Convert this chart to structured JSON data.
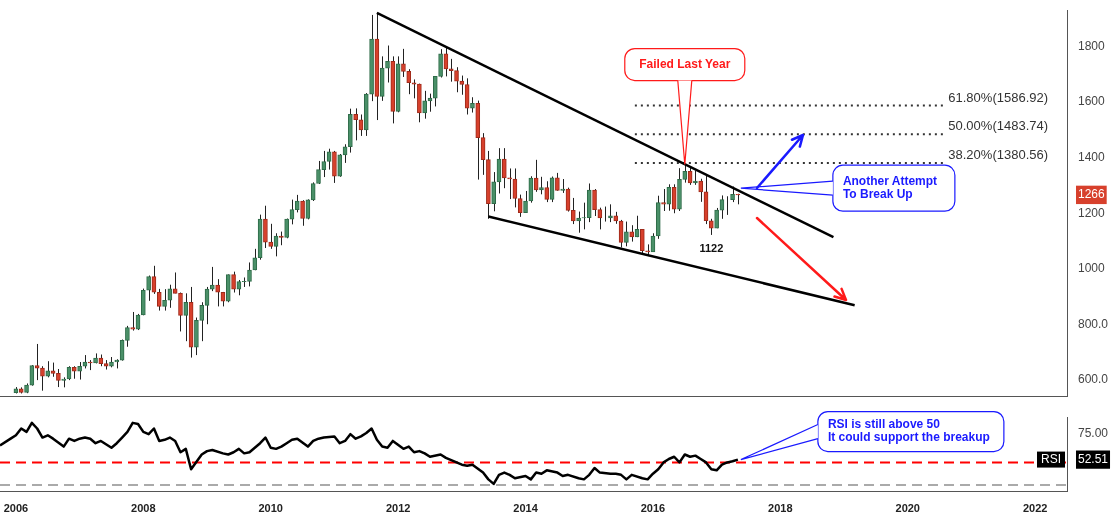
{
  "chart_data": [
    {
      "type": "candlestick",
      "x": [
        "2006-01",
        "2006-02",
        "2006-03",
        "2006-04",
        "2006-05",
        "2006-06",
        "2006-07",
        "2006-08",
        "2006-09",
        "2006-10",
        "2006-11",
        "2006-12",
        "2007-01",
        "2007-02",
        "2007-03",
        "2007-04",
        "2007-05",
        "2007-06",
        "2007-07",
        "2007-08",
        "2007-09",
        "2007-10",
        "2007-11",
        "2007-12",
        "2008-01",
        "2008-02",
        "2008-03",
        "2008-04",
        "2008-05",
        "2008-06",
        "2008-07",
        "2008-08",
        "2008-09",
        "2008-10",
        "2008-11",
        "2008-12",
        "2009-01",
        "2009-02",
        "2009-03",
        "2009-04",
        "2009-05",
        "2009-06",
        "2009-07",
        "2009-08",
        "2009-09",
        "2009-10",
        "2009-11",
        "2009-12",
        "2010-01",
        "2010-02",
        "2010-03",
        "2010-04",
        "2010-05",
        "2010-06",
        "2010-07",
        "2010-08",
        "2010-09",
        "2010-10",
        "2010-11",
        "2010-12",
        "2011-01",
        "2011-02",
        "2011-03",
        "2011-04",
        "2011-05",
        "2011-06",
        "2011-07",
        "2011-08",
        "2011-09",
        "2011-10",
        "2011-11",
        "2011-12",
        "2012-01",
        "2012-02",
        "2012-03",
        "2012-04",
        "2012-05",
        "2012-06",
        "2012-07",
        "2012-08",
        "2012-09",
        "2012-10",
        "2012-11",
        "2012-12",
        "2013-01",
        "2013-02",
        "2013-03",
        "2013-04",
        "2013-05",
        "2013-06",
        "2013-07",
        "2013-08",
        "2013-09",
        "2013-10",
        "2013-11",
        "2013-12",
        "2014-01",
        "2014-02",
        "2014-03",
        "2014-04",
        "2014-05",
        "2014-06",
        "2014-07",
        "2014-08",
        "2014-09",
        "2014-10",
        "2014-11",
        "2014-12",
        "2015-01",
        "2015-02",
        "2015-03",
        "2015-04",
        "2015-05",
        "2015-06",
        "2015-07",
        "2015-08",
        "2015-09",
        "2015-10",
        "2015-11",
        "2015-12",
        "2016-01",
        "2016-02",
        "2016-03",
        "2016-04",
        "2016-05",
        "2016-06",
        "2016-07",
        "2016-08",
        "2016-09",
        "2016-10",
        "2016-11",
        "2016-12",
        "2017-01",
        "2017-02",
        "2017-03",
        "2017-04",
        "2017-05"
      ],
      "ohlc": [
        [
          555,
          575,
          552,
          569
        ],
        [
          569,
          574,
          552,
          556
        ],
        [
          556,
          588,
          553,
          582
        ],
        [
          582,
          654,
          580,
          652
        ],
        [
          652,
          730,
          600,
          643
        ],
        [
          643,
          650,
          562,
          614
        ],
        [
          614,
          668,
          610,
          633
        ],
        [
          633,
          663,
          612,
          624
        ],
        [
          624,
          640,
          575,
          599
        ],
        [
          599,
          610,
          574,
          604
        ],
        [
          604,
          650,
          600,
          646
        ],
        [
          646,
          650,
          605,
          632
        ],
        [
          632,
          665,
          602,
          650
        ],
        [
          650,
          690,
          642,
          665
        ],
        [
          665,
          672,
          636,
          662
        ],
        [
          662,
          696,
          660,
          679
        ],
        [
          679,
          692,
          650,
          659
        ],
        [
          659,
          672,
          638,
          650
        ],
        [
          650,
          683,
          646,
          665
        ],
        [
          665,
          675,
          642,
          672
        ],
        [
          672,
          746,
          670,
          743
        ],
        [
          743,
          795,
          720,
          789
        ],
        [
          789,
          845,
          778,
          783
        ],
        [
          783,
          838,
          780,
          834
        ],
        [
          834,
          929,
          833,
          923
        ],
        [
          923,
          976,
          885,
          972
        ],
        [
          972,
          1011,
          910,
          916
        ],
        [
          916,
          928,
          850,
          865
        ],
        [
          865,
          927,
          850,
          887
        ],
        [
          887,
          943,
          860,
          928
        ],
        [
          928,
          987,
          912,
          912
        ],
        [
          912,
          915,
          775,
          833
        ],
        [
          833,
          912,
          740,
          880
        ],
        [
          880,
          935,
          681,
          718
        ],
        [
          718,
          825,
          690,
          815
        ],
        [
          815,
          880,
          740,
          869
        ],
        [
          869,
          935,
          801,
          927
        ],
        [
          927,
          1007,
          920,
          942
        ],
        [
          942,
          963,
          865,
          916
        ],
        [
          916,
          917,
          865,
          884
        ],
        [
          884,
          980,
          880,
          979
        ],
        [
          979,
          990,
          915,
          927
        ],
        [
          927,
          960,
          905,
          954
        ],
        [
          954,
          969,
          935,
          955
        ],
        [
          955,
          1023,
          937,
          996
        ],
        [
          996,
          1072,
          995,
          1040
        ],
        [
          1040,
          1195,
          1033,
          1179
        ],
        [
          1179,
          1227,
          1075,
          1096
        ],
        [
          1096,
          1162,
          1072,
          1081
        ],
        [
          1081,
          1128,
          1045,
          1118
        ],
        [
          1118,
          1134,
          1085,
          1113
        ],
        [
          1113,
          1181,
          1110,
          1179
        ],
        [
          1179,
          1249,
          1160,
          1213
        ],
        [
          1213,
          1266,
          1203,
          1244
        ],
        [
          1244,
          1247,
          1155,
          1181
        ],
        [
          1181,
          1250,
          1178,
          1248
        ],
        [
          1248,
          1311,
          1244,
          1307
        ],
        [
          1307,
          1388,
          1305,
          1357
        ],
        [
          1357,
          1424,
          1330,
          1386
        ],
        [
          1386,
          1432,
          1357,
          1421
        ],
        [
          1421,
          1424,
          1309,
          1333
        ],
        [
          1333,
          1413,
          1331,
          1410
        ],
        [
          1410,
          1448,
          1381,
          1439
        ],
        [
          1439,
          1576,
          1418,
          1556
        ],
        [
          1556,
          1577,
          1462,
          1536
        ],
        [
          1536,
          1555,
          1478,
          1500
        ],
        [
          1500,
          1632,
          1478,
          1628
        ],
        [
          1628,
          1913,
          1603,
          1826
        ],
        [
          1826,
          1920,
          1535,
          1620
        ],
        [
          1620,
          1764,
          1604,
          1722
        ],
        [
          1722,
          1803,
          1670,
          1746
        ],
        [
          1746,
          1764,
          1523,
          1566
        ],
        [
          1566,
          1764,
          1563,
          1737
        ],
        [
          1737,
          1791,
          1690,
          1710
        ],
        [
          1710,
          1718,
          1628,
          1669
        ],
        [
          1669,
          1681,
          1613,
          1664
        ],
        [
          1664,
          1666,
          1527,
          1561
        ],
        [
          1561,
          1640,
          1540,
          1604
        ],
        [
          1604,
          1630,
          1565,
          1614
        ],
        [
          1614,
          1693,
          1584,
          1692
        ],
        [
          1692,
          1790,
          1688,
          1773
        ],
        [
          1773,
          1796,
          1692,
          1719
        ],
        [
          1719,
          1755,
          1673,
          1713
        ],
        [
          1713,
          1725,
          1635,
          1675
        ],
        [
          1675,
          1695,
          1626,
          1663
        ],
        [
          1663,
          1685,
          1555,
          1578
        ],
        [
          1578,
          1617,
          1562,
          1595
        ],
        [
          1595,
          1605,
          1321,
          1472
        ],
        [
          1472,
          1488,
          1338,
          1393
        ],
        [
          1393,
          1424,
          1180,
          1234
        ],
        [
          1234,
          1348,
          1207,
          1313
        ],
        [
          1313,
          1434,
          1271,
          1395
        ],
        [
          1395,
          1434,
          1290,
          1327
        ],
        [
          1327,
          1361,
          1251,
          1323
        ],
        [
          1323,
          1361,
          1221,
          1253
        ],
        [
          1253,
          1267,
          1187,
          1202
        ],
        [
          1202,
          1280,
          1202,
          1244
        ],
        [
          1244,
          1333,
          1238,
          1326
        ],
        [
          1326,
          1392,
          1277,
          1284
        ],
        [
          1284,
          1331,
          1268,
          1292
        ],
        [
          1292,
          1315,
          1240,
          1250
        ],
        [
          1250,
          1332,
          1240,
          1327
        ],
        [
          1327,
          1345,
          1281,
          1282
        ],
        [
          1282,
          1323,
          1273,
          1287
        ],
        [
          1287,
          1292,
          1206,
          1210
        ],
        [
          1210,
          1255,
          1161,
          1172
        ],
        [
          1172,
          1206,
          1130,
          1183
        ],
        [
          1183,
          1238,
          1142,
          1184
        ],
        [
          1184,
          1307,
          1168,
          1283
        ],
        [
          1283,
          1287,
          1190,
          1213
        ],
        [
          1213,
          1220,
          1142,
          1183
        ],
        [
          1183,
          1224,
          1170,
          1183
        ],
        [
          1183,
          1232,
          1168,
          1191
        ],
        [
          1191,
          1205,
          1162,
          1172
        ],
        [
          1172,
          1176,
          1077,
          1095
        ],
        [
          1095,
          1170,
          1081,
          1133
        ],
        [
          1133,
          1157,
          1098,
          1115
        ],
        [
          1115,
          1191,
          1114,
          1142
        ],
        [
          1142,
          1142,
          1053,
          1065
        ],
        [
          1065,
          1088,
          1046,
          1061
        ],
        [
          1061,
          1128,
          1061,
          1118
        ],
        [
          1118,
          1263,
          1108,
          1238
        ],
        [
          1238,
          1287,
          1208,
          1233
        ],
        [
          1233,
          1304,
          1209,
          1293
        ],
        [
          1293,
          1304,
          1200,
          1215
        ],
        [
          1215,
          1362,
          1208,
          1322
        ],
        [
          1322,
          1375,
          1310,
          1351
        ],
        [
          1351,
          1367,
          1302,
          1309
        ],
        [
          1309,
          1353,
          1302,
          1316
        ],
        [
          1316,
          1324,
          1241,
          1277
        ],
        [
          1277,
          1338,
          1161,
          1173
        ],
        [
          1173,
          1180,
          1122,
          1146
        ],
        [
          1146,
          1219,
          1146,
          1211
        ],
        [
          1211,
          1264,
          1180,
          1249
        ],
        [
          1249,
          1261,
          1194,
          1249
        ],
        [
          1249,
          1296,
          1240,
          1268
        ],
        [
          1268,
          1270,
          1232,
          1266
        ]
      ],
      "series": [
        {
          "type": "line",
          "color": "#000000",
          "x": [
            "2011-09",
            "2018-11"
          ],
          "values": [
            1920,
            1114
          ]
        },
        {
          "type": "line",
          "color": "#000000",
          "x": [
            "2013-06",
            "2019-03"
          ],
          "values": [
            1188,
            869
          ]
        }
      ],
      "xlim": [
        "2005-10",
        "2022-07"
      ],
      "ylim": [
        540,
        1930
      ],
      "yticks": [
        {
          "value": 600,
          "label": "600.0"
        },
        {
          "value": 800,
          "label": "800.0"
        },
        1000,
        1200,
        {
          "value": 1266,
          "label": "1266"
        },
        1400,
        1600,
        1800
      ],
      "tick_labels": "y",
      "grid": false,
      "legend": false,
      "marker": "none",
      "ref_lines": [
        {
          "axis": "y",
          "value": 1380.56,
          "label": "38.20%(1380.56)",
          "color": "#333333",
          "line_style": "dotted"
        },
        {
          "axis": "y",
          "value": 1483.74,
          "label": "50.00%(1483.74)",
          "color": "#333333",
          "line_style": "dotted"
        },
        {
          "axis": "y",
          "value": 1586.92,
          "label": "61.80%(1586.92)",
          "color": "#333333",
          "line_style": "dotted"
        }
      ],
      "annotations": [
        {
          "text": "Failed Last Year",
          "x": "2016-07",
          "y": 1375
        },
        {
          "text": "Another Attempt\nTo Break Up",
          "x": "2017-05",
          "y": 1290
        },
        {
          "text": "1122",
          "x": "2016-12",
          "y": 1122
        }
      ]
    },
    {
      "type": "line",
      "series": [
        {
          "color": "#000000",
          "x": [
            "2005-10",
            "2005-12",
            "2006-01",
            "2006-02",
            "2006-03",
            "2006-04",
            "2006-05",
            "2006-06",
            "2006-07",
            "2006-08",
            "2006-10",
            "2006-11",
            "2006-12",
            "2007-01",
            "2007-02",
            "2007-03",
            "2007-04",
            "2007-05",
            "2007-07",
            "2007-08",
            "2007-09",
            "2007-10",
            "2007-11",
            "2007-12",
            "2008-01",
            "2008-02",
            "2008-03",
            "2008-04",
            "2008-05",
            "2008-06",
            "2008-07",
            "2008-08",
            "2008-09",
            "2008-10",
            "2008-12",
            "2009-01",
            "2009-02",
            "2009-04",
            "2009-05",
            "2009-06",
            "2009-07",
            "2009-08",
            "2009-09",
            "2009-10",
            "2009-11",
            "2009-12",
            "2010-01",
            "2010-02",
            "2010-03",
            "2010-04",
            "2010-05",
            "2010-06",
            "2010-08",
            "2010-09",
            "2010-10",
            "2010-11",
            "2011-01",
            "2011-02",
            "2011-03",
            "2011-04",
            "2011-05",
            "2011-06",
            "2011-07",
            "2011-08",
            "2011-09",
            "2011-10",
            "2011-11",
            "2011-12",
            "2012-02",
            "2012-03",
            "2012-04",
            "2012-05",
            "2012-06",
            "2012-07",
            "2012-09",
            "2012-10",
            "2012-11",
            "2013-01",
            "2013-02",
            "2013-03",
            "2013-05",
            "2013-06",
            "2013-07",
            "2013-08",
            "2013-09",
            "2013-10",
            "2013-11",
            "2014-01",
            "2014-02",
            "2014-03",
            "2014-04",
            "2014-05",
            "2014-07",
            "2014-08",
            "2014-09",
            "2014-11",
            "2014-12",
            "2015-01",
            "2015-02",
            "2015-03",
            "2015-05",
            "2015-06",
            "2015-07",
            "2015-08",
            "2015-09",
            "2015-11",
            "2015-12",
            "2016-01",
            "2016-02",
            "2016-03",
            "2016-04",
            "2016-05",
            "2016-06",
            "2016-07",
            "2016-08",
            "2016-09",
            "2016-10",
            "2016-11",
            "2016-12",
            "2017-01",
            "2017-02",
            "2017-03",
            "2017-04",
            "2017-05"
          ],
          "values": [
            65,
            71,
            74,
            80,
            77,
            85,
            80,
            72,
            74,
            71,
            64,
            71,
            69,
            71,
            72,
            71,
            67,
            69,
            63,
            67,
            72,
            77,
            85,
            84,
            77,
            75,
            80,
            69,
            70,
            72,
            69,
            59,
            62,
            44,
            57,
            60,
            61,
            58,
            57,
            59,
            62,
            58,
            59,
            63,
            67,
            72,
            63,
            62,
            64,
            67,
            70,
            71,
            64,
            69,
            71,
            72,
            73,
            67,
            69,
            75,
            71,
            73,
            76,
            80,
            70,
            64,
            63,
            69,
            62,
            64,
            59,
            60,
            58,
            55,
            57,
            54,
            52,
            48,
            47,
            48,
            41,
            35,
            31,
            39,
            41,
            39,
            36,
            38,
            35,
            41,
            40,
            43,
            41,
            38,
            39,
            36,
            35,
            39,
            45,
            41,
            40,
            40,
            39,
            35,
            39,
            36,
            35,
            40,
            44,
            50,
            53,
            55,
            50,
            57,
            55,
            56,
            53,
            50,
            44,
            43,
            48,
            50,
            51,
            52.51
          ]
        }
      ],
      "xlim": [
        "2005-10",
        "2022-07"
      ],
      "xticks": [
        "2006",
        "2008",
        "2010",
        "2012",
        "2014",
        "2016",
        "2018",
        "2020",
        "2022"
      ],
      "ylim": [
        24,
        90
      ],
      "yticks": [
        {
          "value": 52.51,
          "label": "52.51"
        },
        {
          "value": 75,
          "label": "75.00"
        }
      ],
      "ylabel": "RSI",
      "grid": false,
      "legend": false,
      "marker": "none",
      "ref_lines": [
        {
          "axis": "y",
          "value": 50,
          "color": "#ff0000",
          "line_style": "dashed"
        },
        {
          "axis": "y",
          "value": 30,
          "color": "#aaaaaa",
          "line_style": "dashed"
        }
      ],
      "annotations": [
        {
          "text": "RSI is still above 50\nIt could support the breakup",
          "x": "2017-05",
          "y": 52.51
        }
      ]
    }
  ]
}
